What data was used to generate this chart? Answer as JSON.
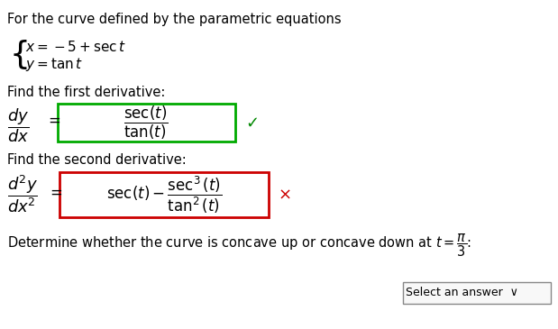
{
  "bg_color": "#ffffff",
  "text_color": "#000000",
  "green_color": "#008800",
  "red_color": "#cc0000",
  "box_green": "#00aa00",
  "box_red": "#cc0000",
  "line1": "For the curve defined by the parametric equations",
  "label_first": "Find the first derivative:",
  "label_second": "Find the second derivative:",
  "last_line_pre": "Determine whether the curve is concave up or concave down at ",
  "dropdown_label": "Select an answer ✓"
}
